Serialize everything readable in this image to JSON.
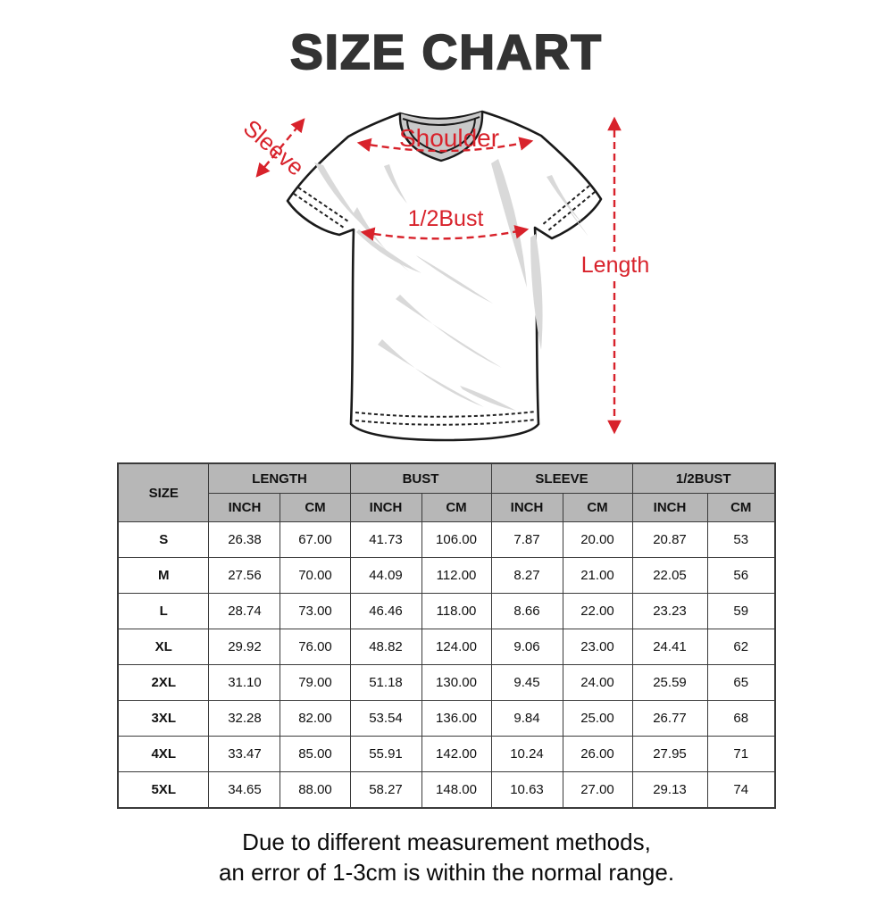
{
  "title": "SIZE CHART",
  "colors": {
    "accent_red": "#d8222b",
    "title_gray": "#333333",
    "header_bg": "#b7b7b7",
    "shirt_outline": "#1a1a1a",
    "collar_gray": "#c9c9c9",
    "wrinkle_gray": "#d9d9d9"
  },
  "diagram": {
    "labels": {
      "sleeve": "Sleeve",
      "shoulder": "Shoulder",
      "half_bust": "1/2Bust",
      "length": "Length"
    }
  },
  "table": {
    "size_header": "SIZE",
    "groups": [
      "LENGTH",
      "BUST",
      "SLEEVE",
      "1/2BUST"
    ],
    "units": [
      "INCH",
      "CM"
    ],
    "rows": [
      {
        "size": "S",
        "values": [
          "26.38",
          "67.00",
          "41.73",
          "106.00",
          "7.87",
          "20.00",
          "20.87",
          "53"
        ]
      },
      {
        "size": "M",
        "values": [
          "27.56",
          "70.00",
          "44.09",
          "112.00",
          "8.27",
          "21.00",
          "22.05",
          "56"
        ]
      },
      {
        "size": "L",
        "values": [
          "28.74",
          "73.00",
          "46.46",
          "118.00",
          "8.66",
          "22.00",
          "23.23",
          "59"
        ]
      },
      {
        "size": "XL",
        "values": [
          "29.92",
          "76.00",
          "48.82",
          "124.00",
          "9.06",
          "23.00",
          "24.41",
          "62"
        ]
      },
      {
        "size": "2XL",
        "values": [
          "31.10",
          "79.00",
          "51.18",
          "130.00",
          "9.45",
          "24.00",
          "25.59",
          "65"
        ]
      },
      {
        "size": "3XL",
        "values": [
          "32.28",
          "82.00",
          "53.54",
          "136.00",
          "9.84",
          "25.00",
          "26.77",
          "68"
        ]
      },
      {
        "size": "4XL",
        "values": [
          "33.47",
          "85.00",
          "55.91",
          "142.00",
          "10.24",
          "26.00",
          "27.95",
          "71"
        ]
      },
      {
        "size": "5XL",
        "values": [
          "34.65",
          "88.00",
          "58.27",
          "148.00",
          "10.63",
          "27.00",
          "29.13",
          "74"
        ]
      }
    ]
  },
  "footer": {
    "line1": "Due to different measurement methods,",
    "line2": "an error of 1-3cm is within the normal range."
  }
}
